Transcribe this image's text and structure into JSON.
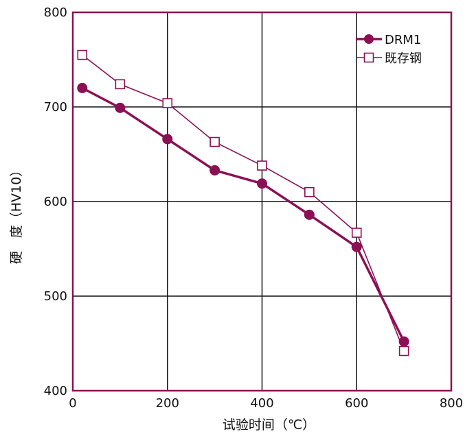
{
  "chart_data": {
    "type": "line",
    "title": "",
    "xlabel": "试验时间（℃）",
    "ylabel": "硬　度（HV10）",
    "xlim": [
      0,
      800
    ],
    "ylim": [
      400,
      800
    ],
    "x_ticks": [
      "0",
      "200",
      "400",
      "600",
      "800"
    ],
    "y_ticks": [
      "400",
      "500",
      "600",
      "700",
      "800"
    ],
    "grid": true,
    "legend_position": "top-right",
    "series": [
      {
        "name": "DRM1",
        "color": "#8B1054",
        "marker": "filled-circle",
        "x": [
          20,
          100,
          200,
          300,
          400,
          500,
          600,
          700
        ],
        "values": [
          720,
          699,
          666,
          633,
          619,
          586,
          552,
          452
        ]
      },
      {
        "name": "既存钢",
        "color": "#8B1054",
        "marker": "open-square",
        "x": [
          20,
          100,
          200,
          300,
          400,
          500,
          600,
          700
        ],
        "values": [
          755,
          724,
          704,
          663,
          638,
          610,
          567,
          442
        ]
      }
    ]
  }
}
